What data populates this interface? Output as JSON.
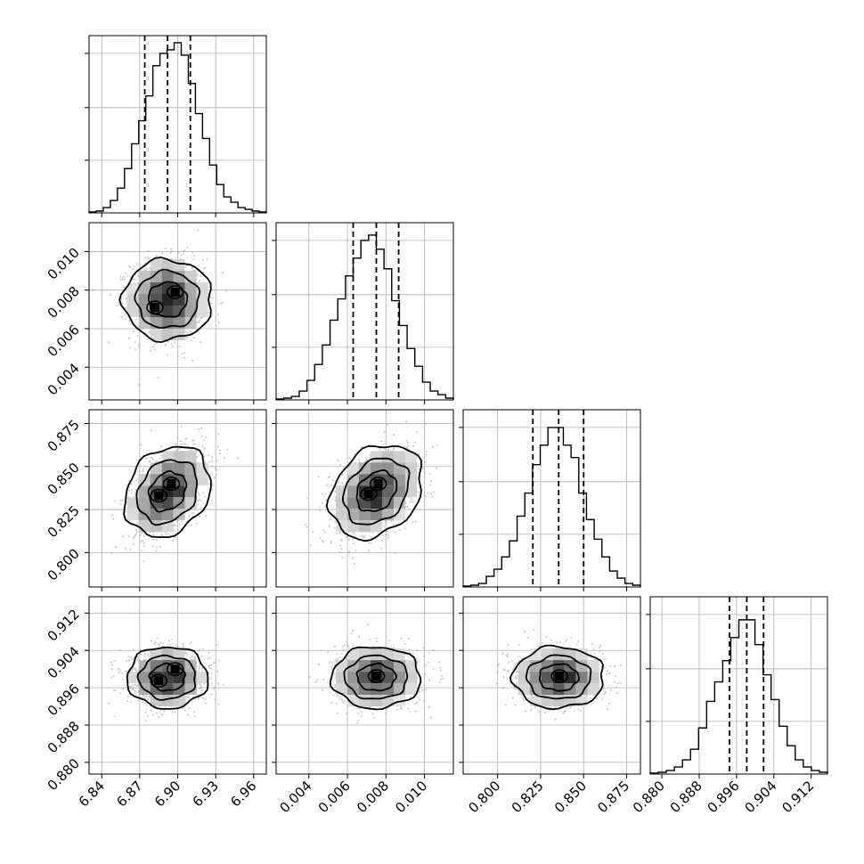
{
  "chart_data": {
    "type": "corner",
    "grid": true,
    "histogram_color": "#000000",
    "contour_color": "#000000",
    "scatter_color": "#8c8c8c",
    "params": [
      {
        "range": [
          6.83,
          6.97
        ],
        "ticks": [
          "6.84",
          "6.87",
          "6.90",
          "6.93",
          "6.96"
        ],
        "tick_values": [
          6.84,
          6.87,
          6.9,
          6.93,
          6.96
        ],
        "quantiles": [
          6.874,
          6.892,
          6.91
        ],
        "hist_counts": [
          0.5,
          1,
          3,
          7,
          14,
          25,
          39,
          52,
          66,
          83,
          90,
          92,
          96,
          89,
          73,
          56,
          42,
          27,
          16,
          9,
          6,
          3,
          2,
          1,
          0.5
        ],
        "hist_ymax": 100
      },
      {
        "range": [
          0.0023,
          0.0115
        ],
        "ticks": [
          "0.004",
          "0.006",
          "0.008",
          "0.010"
        ],
        "tick_values": [
          0.004,
          0.006,
          0.008,
          0.01
        ],
        "quantiles": [
          0.0063,
          0.0075,
          0.00866
        ],
        "hist_counts": [
          0.5,
          1,
          2,
          5,
          11,
          20,
          31,
          45,
          57,
          70,
          80,
          90,
          93,
          85,
          74,
          56,
          42,
          29,
          19,
          10,
          5,
          3,
          1
        ],
        "hist_ymax": 100
      },
      {
        "range": [
          0.78,
          0.883
        ],
        "ticks": [
          "0.800",
          "0.825",
          "0.850",
          "0.875"
        ],
        "tick_values": [
          0.8,
          0.825,
          0.85,
          0.875
        ],
        "quantiles": [
          0.8205,
          0.8355,
          0.85
        ],
        "hist_counts": [
          0.5,
          1,
          2,
          6,
          10,
          17,
          26,
          40,
          53,
          69,
          80,
          90,
          90,
          80,
          73,
          53,
          38,
          27,
          17,
          9,
          5,
          2,
          1
        ],
        "hist_ymax": 100
      },
      {
        "range": [
          0.8775,
          0.9155
        ],
        "ticks": [
          "0.880",
          "0.888",
          "0.896",
          "0.904",
          "0.912"
        ],
        "tick_values": [
          0.88,
          0.888,
          0.896,
          0.904,
          0.912
        ],
        "quantiles": [
          0.8945,
          0.8982,
          0.9018
        ],
        "hist_counts": [
          0.5,
          1,
          2,
          4,
          8,
          14,
          26,
          41,
          52,
          64,
          77,
          87,
          87,
          73,
          56,
          42,
          27,
          16,
          8,
          4,
          2,
          1
        ],
        "hist_ymax": 100
      }
    ],
    "pairs": [
      {
        "x": 0,
        "y": 1,
        "mean": [
          6.892,
          0.0075
        ],
        "sd": [
          0.0145,
          0.00105
        ],
        "rho": 0.0,
        "peaks": [
          [
            6.898,
            0.0079
          ],
          [
            6.882,
            0.0071
          ]
        ]
      },
      {
        "x": 0,
        "y": 2,
        "mean": [
          6.892,
          0.8355
        ],
        "sd": [
          0.0145,
          0.012
        ],
        "rho": 0.45,
        "peaks": [
          [
            6.895,
            0.84
          ],
          [
            6.885,
            0.833
          ]
        ]
      },
      {
        "x": 1,
        "y": 2,
        "mean": [
          0.0075,
          0.8355
        ],
        "sd": [
          0.00105,
          0.012
        ],
        "rho": 0.38,
        "peaks": [
          [
            0.0076,
            0.84
          ],
          [
            0.0071,
            0.834
          ]
        ]
      },
      {
        "x": 0,
        "y": 3,
        "mean": [
          6.892,
          0.8982
        ],
        "sd": [
          0.0145,
          0.003
        ],
        "rho": 0.0,
        "peaks": [
          [
            6.898,
            0.9
          ],
          [
            6.885,
            0.8975
          ]
        ]
      },
      {
        "x": 1,
        "y": 3,
        "mean": [
          0.0075,
          0.8982
        ],
        "sd": [
          0.00105,
          0.003
        ],
        "rho": 0.0,
        "peaks": [
          [
            0.0075,
            0.8985
          ]
        ]
      },
      {
        "x": 2,
        "y": 3,
        "mean": [
          0.8355,
          0.8982
        ],
        "sd": [
          0.012,
          0.003
        ],
        "rho": 0.0,
        "peaks": [
          [
            0.836,
            0.8985
          ]
        ]
      }
    ]
  }
}
